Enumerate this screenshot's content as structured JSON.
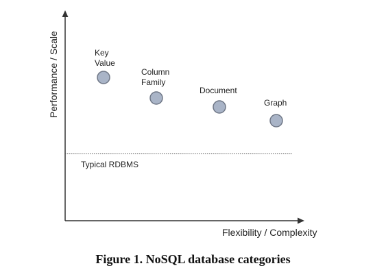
{
  "diagram": {
    "y_axis_label": "Performance / Scale",
    "x_axis_label": "Flexibility / Complexity",
    "reference_line_label": "Typical RDBMS",
    "caption": "Figure 1. NoSQL database categories",
    "marker_color": "#a9b4c7",
    "marker_stroke": "#6f7786",
    "categories": [
      {
        "label": "Key\nValue"
      },
      {
        "label": "Column\nFamily"
      },
      {
        "label": "Document"
      },
      {
        "label": "Graph"
      }
    ]
  }
}
